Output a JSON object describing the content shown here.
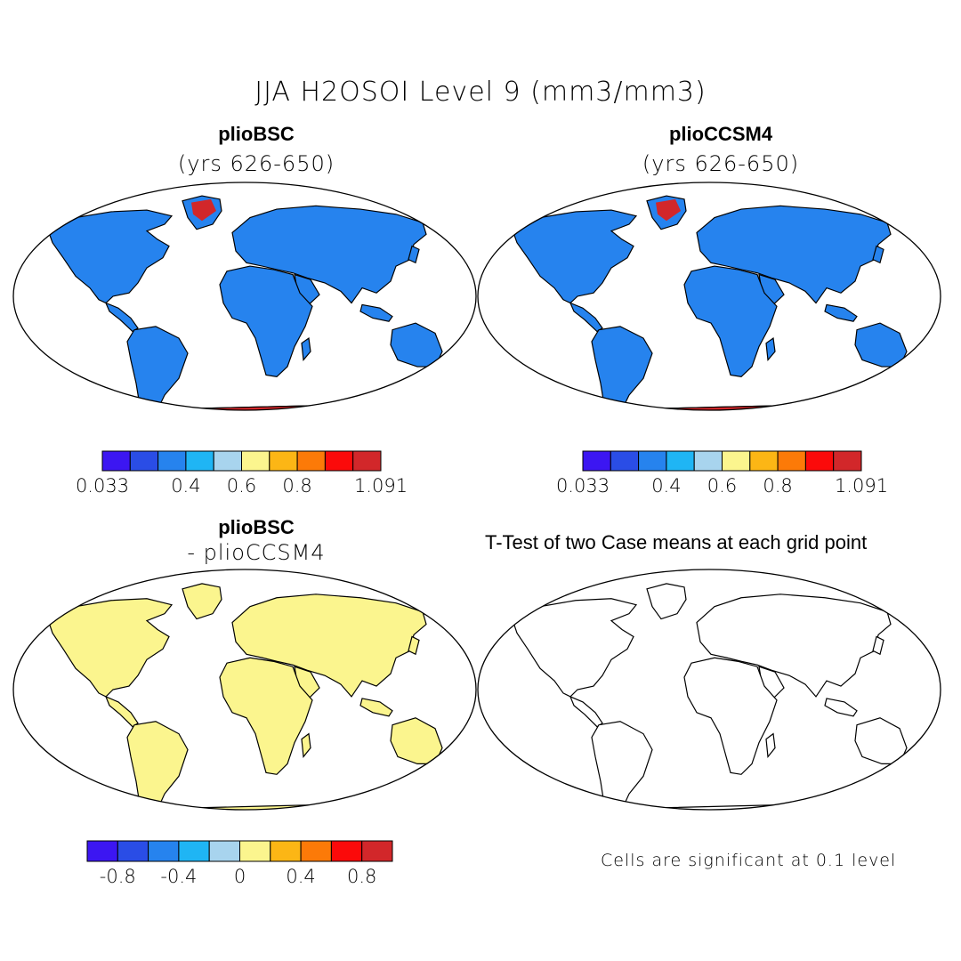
{
  "figure": {
    "title": "JJA H2OSOI Level 9 (mm3/mm3)",
    "panels": [
      {
        "id": "p1",
        "title": "plioBSC",
        "subtitle": "(yrs 626-650)"
      },
      {
        "id": "p2",
        "title": "plioCCSM4",
        "subtitle": "(yrs 626-650)"
      },
      {
        "id": "p3",
        "title": "plioBSC",
        "subtitle": "- plioCCSM4"
      },
      {
        "id": "p4",
        "title": "T-Test of two Case means at each grid point"
      }
    ],
    "note": "Cells are significant at 0.1 level"
  },
  "colorbars": {
    "absolute": {
      "colors": [
        "#3c16f2",
        "#2a4de6",
        "#2683ee",
        "#1fb5f4",
        "#a8d4ee",
        "#fbf58e",
        "#fcb615",
        "#fc7a08",
        "#fb0a0a",
        "#d2272a"
      ],
      "labels": [
        "0.033",
        "0.4",
        "0.6",
        "0.8",
        "1.091"
      ],
      "label_slots": [
        0,
        3,
        5,
        7,
        10
      ]
    },
    "difference": {
      "colors": [
        "#3c16f2",
        "#2a4de6",
        "#2683ee",
        "#1fb5f4",
        "#a8d4ee",
        "#fbf58e",
        "#fcb615",
        "#fc7a08",
        "#fb0a0a",
        "#d2272a"
      ],
      "labels": [
        "-0.8",
        "-0.4",
        "0",
        "0.4",
        "0.8"
      ],
      "label_slots": [
        1,
        3,
        5,
        7,
        9
      ]
    }
  },
  "map_colors": {
    "land_base": "#2683ee",
    "land_dry": "#3c16f2",
    "land_wet": "#1fb5f4",
    "ice": "#d2272a",
    "diff_base": "#fbf58e",
    "diff_alt": "#a8d4ee",
    "significant": "#fb0a0a",
    "coast": "#000000",
    "ocean": "#ffffff"
  }
}
